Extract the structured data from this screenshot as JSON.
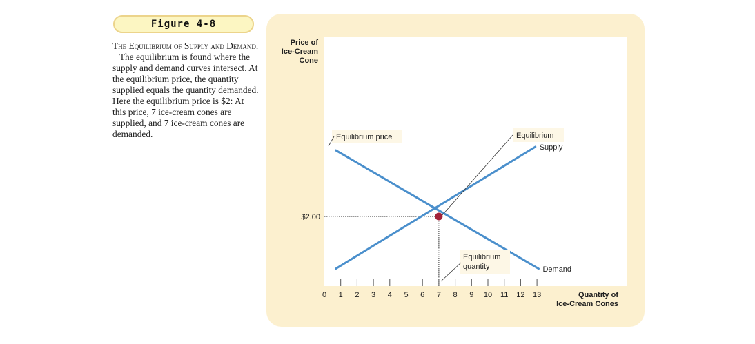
{
  "figure": {
    "label": "Figure 4-8",
    "caption_title_1": "The Equilibrium of Supply",
    "caption_title_2": "and Demand.",
    "caption_body_1": "The equilibrium",
    "caption_body_2": "is found where the supply and demand curves intersect. At the equilibrium price, the quantity supplied equals the quantity demanded. Here the equilibrium price is $2: At this price, 7 ice-cream cones are supplied, and 7 ice-cream cones are demanded."
  },
  "chart_data": {
    "type": "line",
    "ylabel": [
      "Price of",
      "Ice-Cream",
      "Cone"
    ],
    "xlabel": [
      "Quantity of",
      "Ice-Cream Cones"
    ],
    "xlim": [
      0,
      13
    ],
    "x_ticks": [
      0,
      1,
      2,
      3,
      4,
      5,
      6,
      7,
      8,
      9,
      10,
      11,
      12,
      13
    ],
    "x_tick_labels": [
      "0",
      "1",
      "2",
      "3",
      "4",
      "5",
      "6",
      "7",
      "8",
      "9",
      "10",
      "11",
      "12",
      "13"
    ],
    "y_tick_values": [
      2.0
    ],
    "y_tick_labels": [
      "$2.00"
    ],
    "grid": false,
    "series": [
      {
        "name": "Supply",
        "color": "#4a8fcc",
        "x": [
          0.7,
          12.9
        ],
        "y": [
          0.5,
          4.0
        ]
      },
      {
        "name": "Demand",
        "color": "#4a8fcc",
        "x": [
          0.7,
          13.1
        ],
        "y": [
          3.9,
          0.5
        ]
      }
    ],
    "equilibrium": {
      "x": 7,
      "y": 2.0,
      "color": "#a3233a"
    },
    "annotations": {
      "equilibrium_price": "Equilibrium price",
      "equilibrium": "Equilibrium",
      "equilibrium_quantity": [
        "Equilibrium",
        "quantity"
      ]
    }
  },
  "colors": {
    "panel": "#fcf0cf",
    "badge_fill": "#fcf6c2",
    "badge_border": "#ecd48b",
    "curve": "#4a8fcc",
    "point": "#a3233a"
  }
}
